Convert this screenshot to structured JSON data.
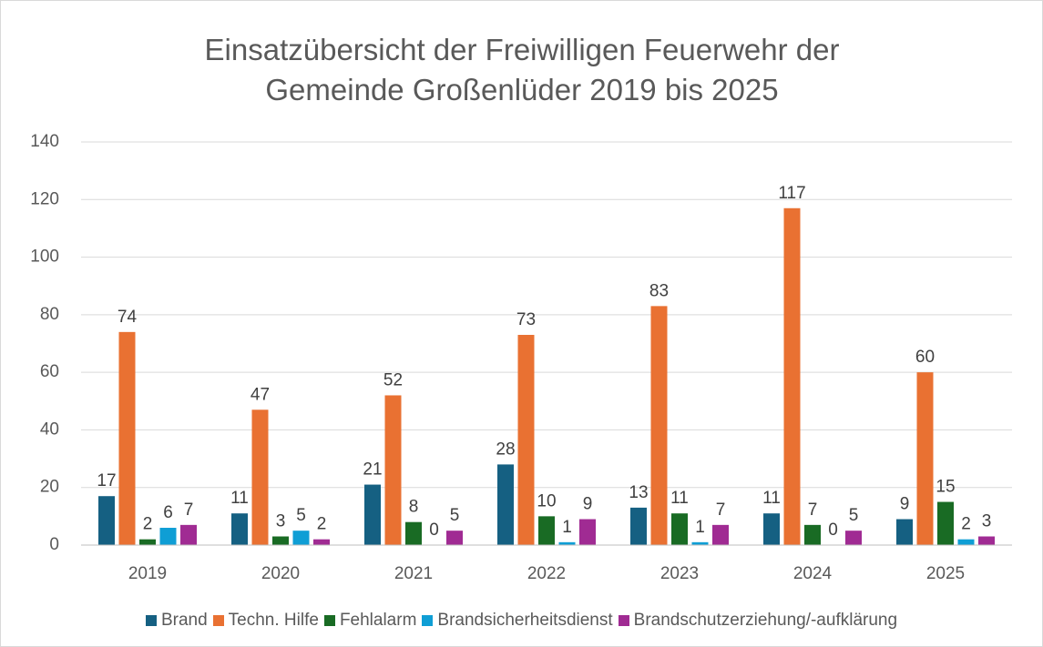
{
  "chart_data": {
    "type": "bar",
    "title": "Einsatzübersicht der Freiwilligen Feuerwehr der Gemeinde Großenlüder 2019 bis 2025",
    "categories": [
      "2019",
      "2020",
      "2021",
      "2022",
      "2023",
      "2024",
      "2025"
    ],
    "series": [
      {
        "name": "Brand",
        "color": "#156082",
        "values": [
          17,
          11,
          21,
          28,
          13,
          11,
          9
        ]
      },
      {
        "name": "Techn. Hilfe",
        "color": "#e97132",
        "values": [
          74,
          47,
          52,
          73,
          83,
          117,
          60
        ]
      },
      {
        "name": "Fehlalarm",
        "color": "#196b24",
        "values": [
          2,
          3,
          8,
          10,
          11,
          7,
          15
        ]
      },
      {
        "name": "Brandsicherheitsdienst",
        "color": "#0f9ed5",
        "values": [
          6,
          5,
          0,
          1,
          1,
          0,
          2
        ]
      },
      {
        "name": "Brandschutzerziehung/-aufklärung",
        "color": "#a02b93",
        "values": [
          7,
          2,
          5,
          9,
          7,
          5,
          3
        ]
      }
    ],
    "ylim": [
      0,
      140
    ],
    "yticks": [
      0,
      20,
      40,
      60,
      80,
      100,
      120,
      140
    ],
    "grid": true,
    "legend": "bottom"
  }
}
